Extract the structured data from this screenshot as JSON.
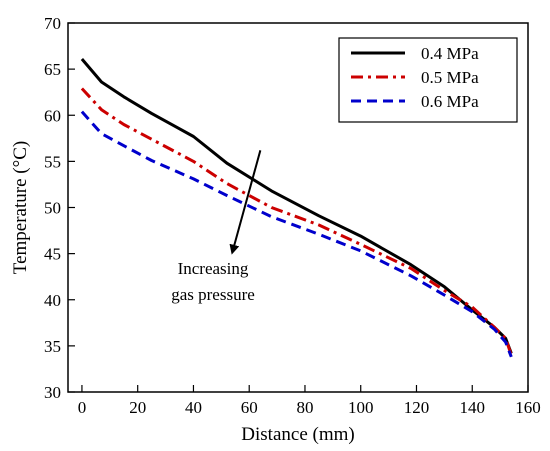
{
  "chart_data": {
    "type": "line",
    "xlabel": "Distance (mm)",
    "ylabel": "Temperature (°C)",
    "xlim": [
      -5,
      160
    ],
    "ylim": [
      30,
      70
    ],
    "xticks": [
      0,
      20,
      40,
      60,
      80,
      100,
      120,
      140,
      160
    ],
    "yticks": [
      30,
      35,
      40,
      45,
      50,
      55,
      60,
      65,
      70
    ],
    "grid": false,
    "legend_position": "top-right",
    "series": [
      {
        "name": "0.4 MPa",
        "color": "#000000",
        "dash": "solid",
        "x": [
          0,
          7,
          15,
          25,
          40,
          52,
          68,
          85,
          100,
          118,
          130,
          140,
          148,
          152,
          154
        ],
        "y": [
          66.1,
          63.6,
          62.0,
          60.2,
          57.7,
          54.8,
          51.8,
          49.1,
          46.9,
          43.8,
          41.4,
          38.9,
          37.0,
          35.8,
          34.2
        ]
      },
      {
        "name": "0.5 MPa",
        "color": "#cc0000",
        "dash": "dashdot",
        "x": [
          0,
          7,
          15,
          25,
          40,
          52,
          68,
          85,
          100,
          118,
          130,
          140,
          148,
          152,
          154
        ],
        "y": [
          62.9,
          60.6,
          59.0,
          57.4,
          55.0,
          52.6,
          50.0,
          48.1,
          46.0,
          43.4,
          41.0,
          39.2,
          37.0,
          35.8,
          34.0
        ]
      },
      {
        "name": "0.6 MPa",
        "color": "#0000cc",
        "dash": "dashed",
        "x": [
          0,
          7,
          15,
          25,
          40,
          52,
          68,
          85,
          100,
          118,
          130,
          140,
          148,
          152,
          154
        ],
        "y": [
          60.4,
          58.0,
          56.7,
          55.1,
          53.1,
          51.3,
          49.0,
          47.1,
          45.3,
          42.6,
          40.5,
          38.7,
          36.8,
          35.4,
          33.8
        ]
      }
    ],
    "annotation": {
      "line1": "Increasing",
      "line2": "gas pressure",
      "arrow_from": [
        64,
        56.2
      ],
      "arrow_to": [
        54,
        45.2
      ]
    }
  }
}
